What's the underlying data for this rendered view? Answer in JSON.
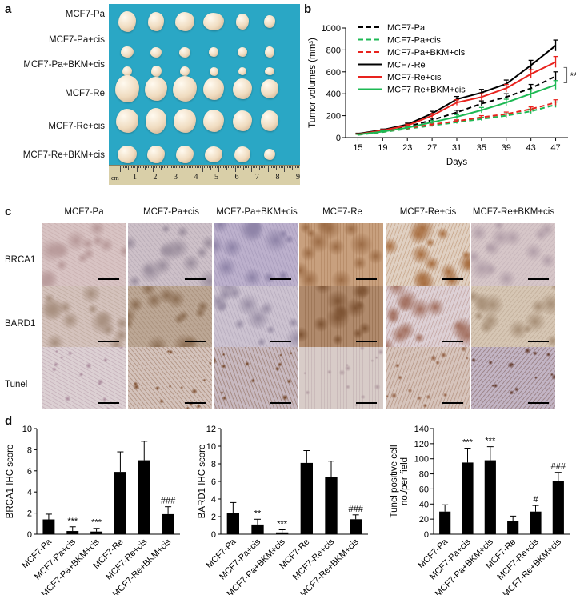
{
  "panels": {
    "a": "a",
    "b": "b",
    "c": "c",
    "d": "d"
  },
  "panel_a": {
    "row_labels": [
      "MCF7-Pa",
      "MCF7-Pa+cis",
      "MCF7-Pa+BKM+cis",
      "MCF7-Re",
      "MCF7-Re+cis",
      "MCF7-Re+BKM+cis"
    ],
    "ruler_unit": "cm",
    "ruler_numbers": [
      "1",
      "2",
      "3",
      "4",
      "5",
      "6",
      "7",
      "8",
      "9"
    ],
    "background_color": "#2aa7c5"
  },
  "panel_c": {
    "columns": [
      "MCF7-Pa",
      "MCF7-Pa+cis",
      "MCF7-Pa+BKM+cis",
      "MCF7-Re",
      "MCF7-Re+cis",
      "MCF7-Re+BKM+cis"
    ],
    "rows": [
      "BRCA1",
      "BARD1",
      "Tunel"
    ]
  },
  "chart_data": [
    {
      "type": "line",
      "ylabel": "Tumor volumes (mm³)",
      "xlabel": "Days",
      "x": [
        15,
        19,
        23,
        27,
        31,
        35,
        39,
        43,
        47
      ],
      "ylim": [
        0,
        1000
      ],
      "yticks": [
        0,
        200,
        400,
        600,
        800,
        1000
      ],
      "series": [
        {
          "name": "MCF7-Pa",
          "color": "#000000",
          "dashed": true,
          "values": [
            30,
            60,
            100,
            160,
            230,
            310,
            370,
            450,
            560
          ],
          "err": [
            5,
            8,
            10,
            15,
            20,
            25,
            30,
            35,
            40
          ]
        },
        {
          "name": "MCF7-Pa+cis",
          "color": "#1db954",
          "dashed": true,
          "values": [
            25,
            50,
            80,
            110,
            140,
            170,
            200,
            240,
            300
          ],
          "err": [
            5,
            6,
            8,
            10,
            12,
            15,
            18,
            20,
            25
          ]
        },
        {
          "name": "MCF7-Pa+BKM+cis",
          "color": "#e8231e",
          "dashed": true,
          "values": [
            28,
            55,
            85,
            120,
            150,
            185,
            215,
            260,
            320
          ],
          "err": [
            5,
            6,
            8,
            10,
            12,
            15,
            18,
            20,
            25
          ]
        },
        {
          "name": "MCF7-Re",
          "color": "#000000",
          "dashed": false,
          "values": [
            35,
            70,
            120,
            220,
            350,
            410,
            490,
            660,
            840
          ],
          "err": [
            5,
            8,
            12,
            20,
            25,
            30,
            35,
            45,
            50
          ]
        },
        {
          "name": "MCF7-Re+cis",
          "color": "#e8231e",
          "dashed": false,
          "values": [
            30,
            65,
            110,
            200,
            320,
            370,
            450,
            580,
            690
          ],
          "err": [
            5,
            8,
            12,
            20,
            25,
            30,
            35,
            40,
            50
          ]
        },
        {
          "name": "MCF7-Re+BKM+cis",
          "color": "#1db954",
          "dashed": false,
          "values": [
            28,
            55,
            90,
            140,
            190,
            250,
            320,
            400,
            480
          ],
          "err": [
            5,
            8,
            10,
            15,
            20,
            25,
            30,
            35,
            40
          ]
        }
      ],
      "annotation": "**"
    },
    {
      "type": "bar",
      "ylabel": "BRCA1 IHC score",
      "categories": [
        "MCF7-Pa",
        "MCF7-Pa+cis",
        "MCF7-Pa+BKM+cis",
        "MCF7-Re",
        "MCF7-Re+cis",
        "MCF7-Re+BKM+cis"
      ],
      "values": [
        1.4,
        0.3,
        0.25,
        5.9,
        7.0,
        1.9
      ],
      "err": [
        0.5,
        0.4,
        0.3,
        1.9,
        1.8,
        0.7
      ],
      "labels": [
        "",
        "***",
        "***",
        "",
        "",
        "###"
      ],
      "ylim": [
        0,
        10
      ],
      "yticks": [
        0,
        2,
        4,
        6,
        8,
        10
      ]
    },
    {
      "type": "bar",
      "ylabel": "BARD1 IHC score",
      "categories": [
        "MCF7-Pa",
        "MCF7-Pa+cis",
        "MCF7-Pa+BKM+cis",
        "MCF7-Re",
        "MCF7-Re+cis",
        "MCF7-Re+BKM+cis"
      ],
      "values": [
        2.4,
        1.1,
        0.2,
        8.1,
        6.5,
        1.7
      ],
      "err": [
        1.2,
        0.6,
        0.3,
        1.4,
        1.8,
        0.5
      ],
      "labels": [
        "",
        "**",
        "***",
        "",
        "",
        "###"
      ],
      "ylim": [
        0,
        12
      ],
      "yticks": [
        0,
        2,
        4,
        6,
        8,
        10,
        12
      ]
    },
    {
      "type": "bar",
      "ylabel": "Tunel positive cell no./per field",
      "ylabel_lines": [
        "Tunel positive cell",
        "no./per field"
      ],
      "categories": [
        "MCF7-Pa",
        "MCF7-Pa+cis",
        "MCF7-Pa+BKM+cis",
        "MCF7-Re",
        "MCF7-Re+cis",
        "MCF7-Re+BKM+cis"
      ],
      "values": [
        30,
        95,
        98,
        18,
        30,
        70
      ],
      "err": [
        9,
        19,
        18,
        6,
        8,
        12
      ],
      "labels": [
        "",
        "***",
        "***",
        "",
        "#",
        "###"
      ],
      "ylim": [
        0,
        140
      ],
      "yticks": [
        0,
        20,
        40,
        60,
        80,
        100,
        120,
        140
      ]
    }
  ]
}
